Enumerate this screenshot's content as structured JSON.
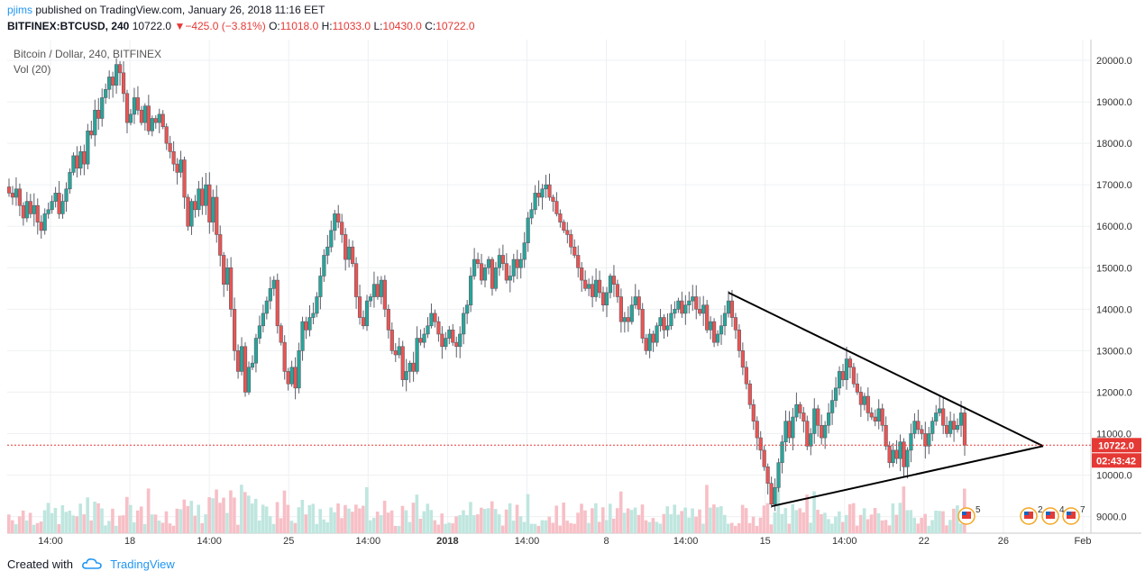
{
  "header": {
    "user": "pjims",
    "published_text": " published on TradingView.com, January 26, 2018 11:16 EET",
    "symbol": "BITFINEX:BTCUSD, 240",
    "last": "10722.0",
    "down_arrow": "▼",
    "change": "−425.0 (−3.81%)",
    "o_label": "O:",
    "o_val": "11018.0",
    "h_label": "H:",
    "h_val": "11033.0",
    "l_label": "L:",
    "l_val": "10430.0",
    "c_label": "C:",
    "c_val": "10722.0"
  },
  "legend": {
    "title": "Bitcoin / Dollar, 240, BITFINEX",
    "vol": "Vol (20)"
  },
  "footer": {
    "created_with": "Created with",
    "brand": "TradingView"
  },
  "colors": {
    "up": "#26a69a",
    "down": "#ef5350",
    "vol_up": "#bfe6df",
    "vol_down": "#f7bfc6",
    "price_line": "#e53935",
    "accent": "#2196f3"
  },
  "chart_data": {
    "type": "candlestick",
    "ylim": [
      8600,
      20500
    ],
    "y_ticks": [
      "20000.0",
      "19000.0",
      "18000.0",
      "17000.0",
      "16000.0",
      "15000.0",
      "14000.0",
      "13000.0",
      "12000.0",
      "11000.0",
      "10000.0",
      "9000.0"
    ],
    "x_ticks": [
      "14:00",
      "18",
      "14:00",
      "25",
      "14:00",
      "2018",
      "14:00",
      "8",
      "14:00",
      "15",
      "14:00",
      "22",
      "26",
      "Feb"
    ],
    "price_label": "10722.0",
    "countdown_label": "02:43:42",
    "closes": [
      16800,
      16700,
      16900,
      16500,
      16200,
      16600,
      16300,
      16500,
      16100,
      15900,
      16300,
      16400,
      16600,
      16800,
      16300,
      16600,
      16900,
      17300,
      17700,
      17400,
      17800,
      17500,
      18300,
      18200,
      18800,
      18600,
      19100,
      19300,
      19600,
      19400,
      19900,
      19700,
      19200,
      18500,
      18700,
      19100,
      18800,
      18500,
      18900,
      18300,
      18600,
      18500,
      18700,
      18400,
      18000,
      17800,
      17500,
      17300,
      17600,
      16700,
      16000,
      16600,
      16400,
      16900,
      16500,
      17000,
      16100,
      16700,
      15800,
      15300,
      14600,
      15000,
      14000,
      13000,
      12500,
      13100,
      12000,
      12600,
      12700,
      13300,
      13600,
      13900,
      14200,
      14500,
      14700,
      13600,
      13200,
      12500,
      12200,
      12600,
      12100,
      13000,
      13700,
      13500,
      13800,
      13900,
      14300,
      14800,
      15300,
      15500,
      15900,
      16300,
      16100,
      15800,
      15200,
      15500,
      15100,
      14300,
      13800,
      13600,
      14200,
      14300,
      14600,
      14300,
      14700,
      14000,
      13500,
      13000,
      12900,
      13100,
      12300,
      12500,
      12700,
      12500,
      13300,
      13200,
      13400,
      13600,
      13900,
      13700,
      13400,
      13100,
      13300,
      13500,
      13200,
      13100,
      13400,
      13900,
      14100,
      14800,
      15200,
      15100,
      14700,
      15000,
      15200,
      14500,
      15000,
      15300,
      15100,
      14700,
      14800,
      15200,
      15000,
      15200,
      15600,
      16200,
      16400,
      16800,
      16700,
      16900,
      17000,
      16700,
      16600,
      16300,
      16100,
      15900,
      15800,
      15500,
      15300,
      15000,
      14700,
      14500,
      14600,
      14300,
      14700,
      14400,
      14100,
      14400,
      14800,
      14600,
      14300,
      13700,
      13800,
      13700,
      14100,
      14300,
      14000,
      13300,
      13000,
      13400,
      13200,
      13600,
      13800,
      13500,
      13600,
      13900,
      14000,
      14200,
      13900,
      14100,
      14200,
      14300,
      14000,
      13900,
      14100,
      13500,
      13700,
      13200,
      13400,
      13600,
      13900,
      14200,
      13800,
      13500,
      13000,
      12600,
      12200,
      11700,
      11300,
      10900,
      10600,
      10200,
      9800,
      9300,
      9700,
      10300,
      10800,
      11300,
      10900,
      11400,
      11700,
      11500,
      11300,
      10700,
      11000,
      11600,
      11200,
      10900,
      11200,
      11500,
      11800,
      12100,
      12500,
      12300,
      12800,
      12600,
      12200,
      12000,
      11700,
      11900,
      11500,
      11400,
      11300,
      11600,
      11200,
      10700,
      10300,
      10600,
      10400,
      10800,
      10200,
      10600,
      11000,
      11300,
      11100,
      11000,
      10700,
      11000,
      11300,
      11500,
      11600,
      11200,
      11000,
      11300,
      11100,
      11200,
      11500,
      10722
    ]
  }
}
